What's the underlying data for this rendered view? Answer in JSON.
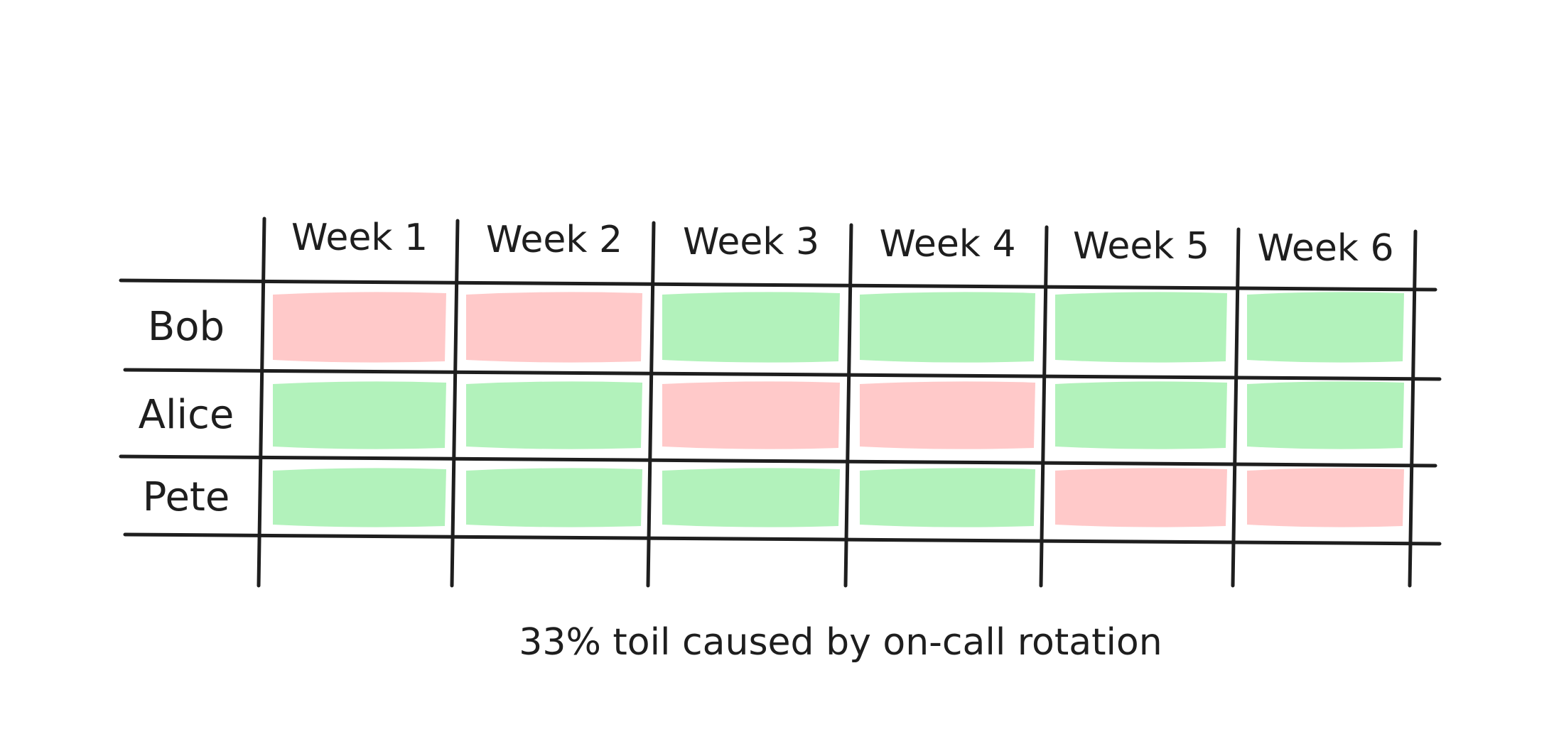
{
  "weeks": [
    "Week 1",
    "Week 2",
    "Week 3",
    "Week 4",
    "Week 5",
    "Week 6"
  ],
  "rows": [
    {
      "name": "Bob",
      "cells": [
        "toil",
        "toil",
        "ok",
        "ok",
        "ok",
        "ok"
      ]
    },
    {
      "name": "Alice",
      "cells": [
        "ok",
        "ok",
        "toil",
        "toil",
        "ok",
        "ok"
      ]
    },
    {
      "name": "Pete",
      "cells": [
        "ok",
        "ok",
        "ok",
        "ok",
        "toil",
        "toil"
      ]
    }
  ],
  "caption": "33% toil caused by on-call rotation",
  "colors": {
    "toil": "#ffc9c9",
    "ok": "#b2f2bb",
    "line": "#1e1e1e",
    "text": "#1e1e1e",
    "background": "#ffffff"
  }
}
